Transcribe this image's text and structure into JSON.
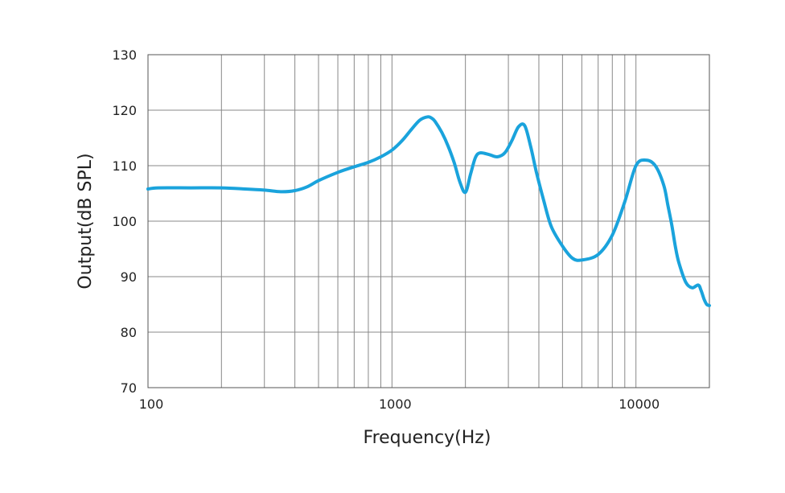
{
  "chart_data": {
    "type": "line",
    "title": "",
    "xlabel": "Frequency(Hz)",
    "ylabel": "Output(dB SPL)",
    "x_scale": "log",
    "xlim": [
      100,
      20000
    ],
    "ylim": [
      70,
      130
    ],
    "grid": true,
    "x_tick_labels": [
      "100",
      "1000",
      "10000"
    ],
    "y_tick_labels": [
      "70",
      "80",
      "90",
      "100",
      "110",
      "120",
      "130"
    ],
    "line_color": "#1aa3dc",
    "series": [
      {
        "x": [
          100,
          110,
          150,
          200,
          250,
          300,
          350,
          400,
          450,
          500,
          600,
          700,
          800,
          900,
          1000,
          1100,
          1200,
          1300,
          1400,
          1450,
          1500,
          1600,
          1700,
          1800,
          1900,
          2000,
          2100,
          2200,
          2300,
          2500,
          2700,
          2900,
          3100,
          3300,
          3500,
          3700,
          3900,
          4200,
          4500,
          5000,
          5500,
          6000,
          7000,
          8000,
          9000,
          10000,
          11000,
          12000,
          13000,
          13500,
          14000,
          14500,
          15000,
          16000,
          17000,
          18000,
          18500,
          19000,
          19500,
          20000
        ],
        "y": [
          105.8,
          106.0,
          106.0,
          106.0,
          105.8,
          105.6,
          105.3,
          105.5,
          106.2,
          107.3,
          108.8,
          109.8,
          110.6,
          111.6,
          112.8,
          114.5,
          116.5,
          118.2,
          118.8,
          118.6,
          118.0,
          116.0,
          113.5,
          110.5,
          107.0,
          105.2,
          108.5,
          111.5,
          112.3,
          112.0,
          111.6,
          112.3,
          114.5,
          117.0,
          117.2,
          113.5,
          109.0,
          103.5,
          99.0,
          95.5,
          93.3,
          93.0,
          94.0,
          97.5,
          103.5,
          110.0,
          111.0,
          110.0,
          106.5,
          103.0,
          99.5,
          95.5,
          92.5,
          89.0,
          88.0,
          88.5,
          87.5,
          86.0,
          85.0,
          84.8
        ]
      }
    ]
  }
}
